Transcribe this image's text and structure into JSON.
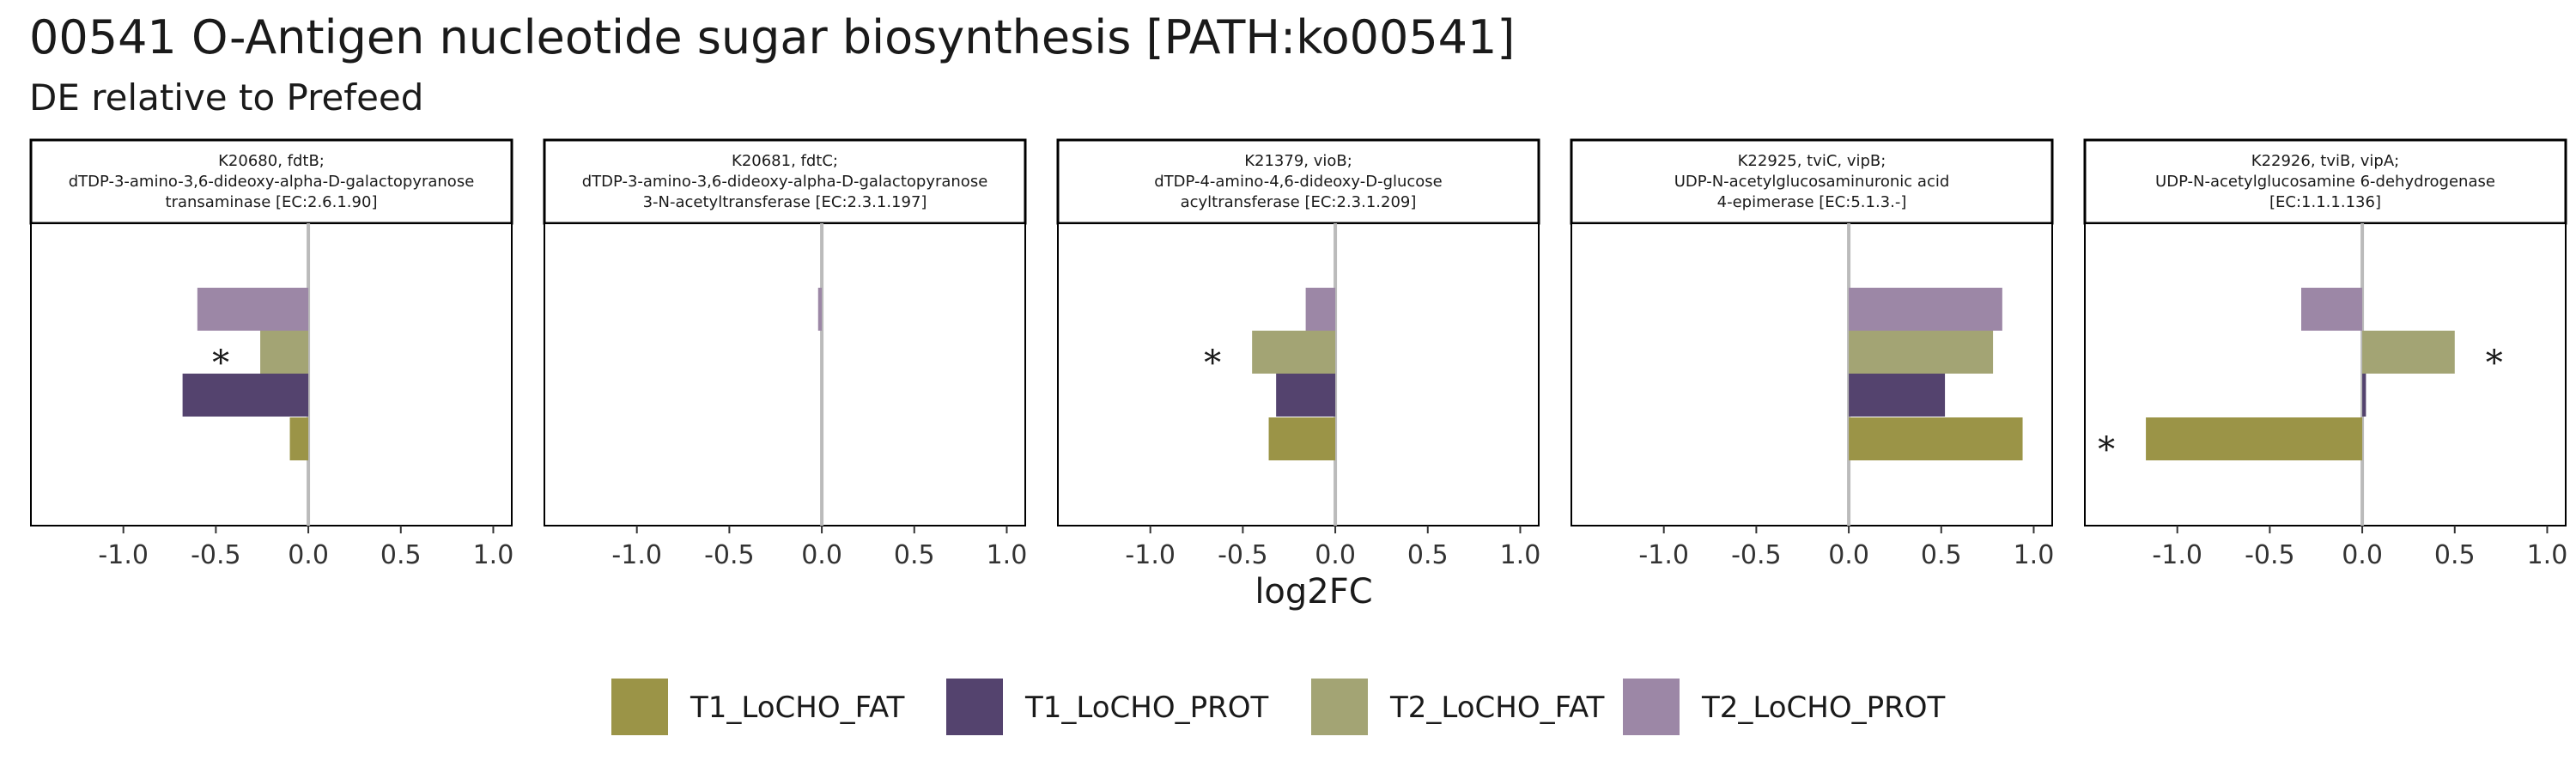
{
  "chart_data": {
    "type": "bar",
    "orientation": "horizontal",
    "title": "00541 O-Antigen nucleotide sugar biosynthesis [PATH:ko00541]",
    "subtitle": "DE relative to Prefeed",
    "xlabel": "log2FC",
    "xlim": [
      -1.5,
      1.1
    ],
    "xticks": [
      -1.0,
      -0.5,
      0.0,
      0.5,
      1.0
    ],
    "xtick_labels": [
      "-1.0",
      "-0.5",
      "0.0",
      "0.5",
      "1.0"
    ],
    "legend_position": "bottom",
    "series": [
      {
        "name": "T1_LoCHO_FAT",
        "color": "#9b9447"
      },
      {
        "name": "T1_LoCHO_PROT",
        "color": "#54436e"
      },
      {
        "name": "T2_LoCHO_FAT",
        "color": "#a3a474"
      },
      {
        "name": "T2_LoCHO_PROT",
        "color": "#9c87a6"
      }
    ],
    "panels": [
      {
        "strip": [
          "K20680, fdtB;",
          "dTDP-3-amino-3,6-dideoxy-alpha-D-galactopyranose",
          "transaminase [EC:2.6.1.90]"
        ],
        "values": [
          -0.1,
          -0.68,
          -0.26,
          -0.6
        ],
        "significant": [
          false,
          false,
          true,
          false
        ]
      },
      {
        "strip": [
          "K20681, fdtC;",
          "dTDP-3-amino-3,6-dideoxy-alpha-D-galactopyranose",
          "3-N-acetyltransferase [EC:2.3.1.197]"
        ],
        "values": [
          0,
          0,
          0,
          -0.02
        ],
        "significant": [
          false,
          false,
          false,
          false
        ]
      },
      {
        "strip": [
          "K21379, vioB;",
          "dTDP-4-amino-4,6-dideoxy-D-glucose",
          "acyltransferase [EC:2.3.1.209]"
        ],
        "values": [
          -0.36,
          -0.32,
          -0.45,
          -0.16
        ],
        "significant": [
          false,
          false,
          true,
          false
        ]
      },
      {
        "strip": [
          "K22925, tviC, vipB;",
          "UDP-N-acetylglucosaminuronic acid",
          "4-epimerase [EC:5.1.3.-]"
        ],
        "values": [
          0.94,
          0.52,
          0.78,
          0.83
        ],
        "significant": [
          false,
          false,
          false,
          false
        ]
      },
      {
        "strip": [
          "K22926, tviB, vipA;",
          "UDP-N-acetylglucosamine 6-dehydrogenase",
          "[EC:1.1.1.136]"
        ],
        "values": [
          -1.17,
          0.02,
          0.5,
          -0.33
        ],
        "significant": [
          true,
          false,
          true,
          false
        ]
      }
    ],
    "significance_marker": "*"
  }
}
